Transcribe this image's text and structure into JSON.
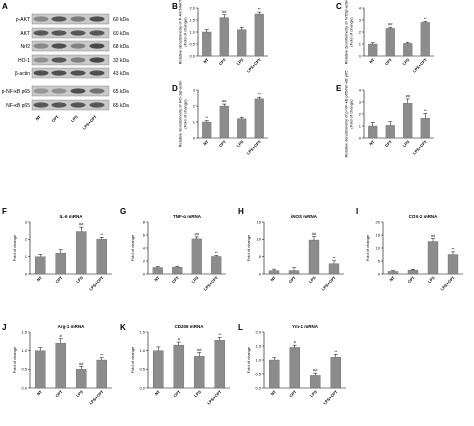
{
  "figure": {
    "western": {
      "panel": "A",
      "blots": [
        {
          "label": "p-AKT",
          "size": "60 kDa"
        },
        {
          "label": "AKT",
          "size": "60 kDa"
        },
        {
          "label": "Nrf2",
          "size": "68 kDa"
        },
        {
          "label": "HO-1",
          "size": "32 kDa"
        },
        {
          "label": "β-actin",
          "size": "43 kDa"
        },
        {
          "label": "p-NF-κB p65",
          "size": "65 kDa"
        },
        {
          "label": "NF-κB p65",
          "size": "65 kDa"
        }
      ],
      "lanes": [
        "NT",
        "CPT",
        "LPS",
        "LPS+CPT"
      ]
    }
  },
  "chart_data": [
    {
      "panel": "B",
      "type": "bar",
      "title": "",
      "ylabel": "Relative densitometry of P-AKT/AKT(Fold of change)",
      "categories": [
        "NT",
        "CPT",
        "LPS",
        "LPS+CPT"
      ],
      "values": [
        1.0,
        1.6,
        1.1,
        1.75
      ],
      "errors": [
        0.1,
        0.12,
        0.1,
        0.08
      ],
      "ylim": [
        0,
        2.0
      ],
      "yticks": [
        "0.0",
        "0.5",
        "1.0",
        "1.5",
        "2.0"
      ],
      "annotations": [
        "",
        "##",
        "",
        "**"
      ]
    },
    {
      "panel": "C",
      "type": "bar",
      "title": "",
      "ylabel": "Relative densitometry of Nrf2/β-actin(Fold of change)",
      "categories": [
        "NT",
        "CPT",
        "LPS",
        "LPS+CPT"
      ],
      "values": [
        1.0,
        2.3,
        1.05,
        2.8
      ],
      "errors": [
        0.1,
        0.1,
        0.1,
        0.08
      ],
      "ylim": [
        0,
        4
      ],
      "yticks": [
        "0",
        "1",
        "2",
        "3",
        "4"
      ],
      "annotations": [
        "",
        "##",
        "",
        "**"
      ]
    },
    {
      "panel": "D",
      "type": "bar",
      "title": "",
      "ylabel": "Relative densitometry of HO-1/β-actin(Fold of change)",
      "categories": [
        "NT",
        "CPT",
        "LPS",
        "LPS+CPT"
      ],
      "values": [
        1.0,
        2.0,
        1.2,
        2.45
      ],
      "errors": [
        0.08,
        0.12,
        0.1,
        0.1
      ],
      "ylim": [
        0,
        3
      ],
      "yticks": [
        "0",
        "1",
        "2",
        "3"
      ],
      "annotations": [
        "**",
        "##",
        "",
        "**"
      ]
    },
    {
      "panel": "E",
      "type": "bar",
      "title": "",
      "ylabel": "Relative densitometry of p-NF-κB p65/NF-κB p65(Fold of change)",
      "categories": [
        "NT",
        "CPT",
        "LPS",
        "LPS+CPT"
      ],
      "values": [
        1.0,
        1.05,
        2.9,
        1.65
      ],
      "errors": [
        0.3,
        0.3,
        0.35,
        0.4
      ],
      "ylim": [
        0,
        4
      ],
      "yticks": [
        "0",
        "1",
        "2",
        "3",
        "4"
      ],
      "annotations": [
        "",
        "",
        "##",
        "**"
      ]
    },
    {
      "panel": "F",
      "type": "bar",
      "title": "IL-6 mRNA",
      "ylabel": "Fold of change",
      "categories": [
        "NT",
        "CPT",
        "LPS",
        "LPS+CPT"
      ],
      "values": [
        1.0,
        1.2,
        2.45,
        2.0
      ],
      "errors": [
        0.12,
        0.2,
        0.25,
        0.12
      ],
      "ylim": [
        0,
        3
      ],
      "yticks": [
        "0",
        "1",
        "2",
        "3"
      ],
      "annotations": [
        "",
        "",
        "##",
        "**"
      ]
    },
    {
      "panel": "G",
      "type": "bar",
      "title": "TNF-α mRNA",
      "ylabel": "Fold of change",
      "categories": [
        "NT",
        "CPT",
        "LPS",
        "LPS+CPT"
      ],
      "values": [
        1.0,
        1.05,
        5.4,
        2.7
      ],
      "errors": [
        0.15,
        0.15,
        0.3,
        0.15
      ],
      "ylim": [
        0,
        8
      ],
      "yticks": [
        "0",
        "2",
        "4",
        "6",
        "8"
      ],
      "annotations": [
        "",
        "",
        "##",
        "**"
      ]
    },
    {
      "panel": "H",
      "type": "bar",
      "title": "iNOS mRNA",
      "ylabel": "Fold of change",
      "categories": [
        "NT",
        "CPT",
        "LPS",
        "LPS+CPT"
      ],
      "values": [
        1.0,
        1.0,
        9.8,
        3.0
      ],
      "errors": [
        0.4,
        0.8,
        1.0,
        0.8
      ],
      "ylim": [
        0,
        15
      ],
      "yticks": [
        "0",
        "5",
        "10",
        "15"
      ],
      "annotations": [
        "",
        "",
        "##",
        "**"
      ]
    },
    {
      "panel": "I",
      "type": "bar",
      "title": "COX-2 mRNA",
      "ylabel": "Fold of change",
      "categories": [
        "NT",
        "CPT",
        "LPS",
        "LPS+CPT"
      ],
      "values": [
        1.0,
        1.5,
        12.5,
        7.5
      ],
      "errors": [
        0.3,
        0.3,
        1.2,
        1.0
      ],
      "ylim": [
        0,
        20
      ],
      "yticks": [
        "0",
        "5",
        "10",
        "15",
        "20"
      ],
      "annotations": [
        "",
        "",
        "##",
        "**"
      ]
    },
    {
      "panel": "J",
      "type": "bar",
      "title": "Arg-1 mRNA",
      "ylabel": "Fold of change",
      "categories": [
        "NT",
        "CPT",
        "LPS",
        "LPS+CPT"
      ],
      "values": [
        1.0,
        1.2,
        0.5,
        0.75
      ],
      "errors": [
        0.08,
        0.12,
        0.08,
        0.06
      ],
      "ylim": [
        0,
        1.5
      ],
      "yticks": [
        "0.0",
        "0.5",
        "1.0",
        "1.5"
      ],
      "annotations": [
        "",
        "#",
        "##",
        "**"
      ]
    },
    {
      "panel": "K",
      "type": "bar",
      "title": "CD206 mRNA",
      "ylabel": "Fold of change",
      "categories": [
        "NT",
        "CPT",
        "LPS",
        "LPS+CPT"
      ],
      "values": [
        1.0,
        1.15,
        0.85,
        1.28
      ],
      "errors": [
        0.1,
        0.08,
        0.1,
        0.07
      ],
      "ylim": [
        0,
        1.5
      ],
      "yticks": [
        "0.0",
        "0.5",
        "1.0",
        "1.5"
      ],
      "annotations": [
        "",
        "#",
        "##",
        "**"
      ]
    },
    {
      "panel": "L",
      "type": "bar",
      "title": "Ym-1 mRNA",
      "ylabel": "Fold of change",
      "categories": [
        "NT",
        "CPT",
        "LPS",
        "LPS+CPT"
      ],
      "values": [
        1.0,
        1.45,
        0.45,
        1.1
      ],
      "errors": [
        0.08,
        0.08,
        0.08,
        0.1
      ],
      "ylim": [
        0,
        2.0
      ],
      "yticks": [
        "0.0",
        "0.5",
        "1.0",
        "1.5",
        "2.0"
      ],
      "annotations": [
        "",
        "#",
        "##",
        "**"
      ]
    }
  ],
  "style": {
    "bar_color": "#8c8c8c",
    "axis_color": "#000000",
    "blot_bg": "#c9c9c9",
    "band_color": "#3a3a3a"
  }
}
